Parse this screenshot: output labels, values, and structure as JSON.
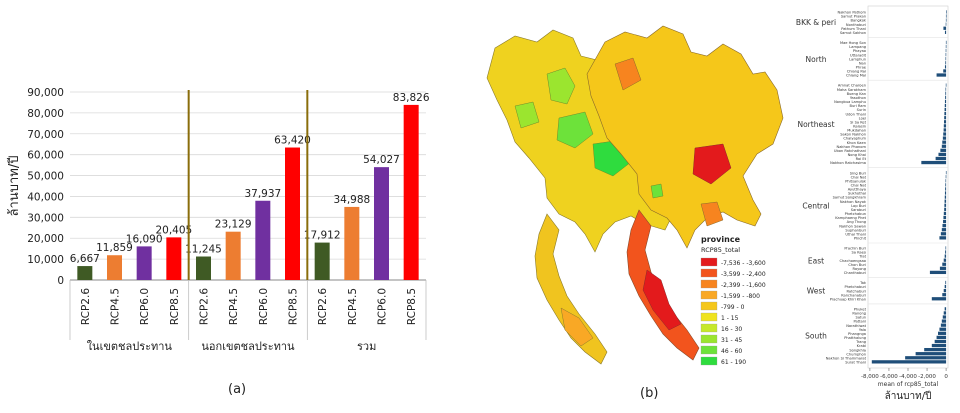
{
  "panel_a_label": "(a)",
  "panel_b_label": "(b)",
  "chart_data": [
    {
      "type": "bar",
      "ylabel": "ล้านบาท/ปี",
      "ylim": [
        0,
        90000
      ],
      "yticks": [
        "0",
        "10,000",
        "20,000",
        "30,000",
        "40,000",
        "50,000",
        "60,000",
        "70,000",
        "80,000",
        "90,000"
      ],
      "groups": [
        {
          "name": "ในเขตชลประทาน",
          "categories": [
            "RCP2.6",
            "RCP4.5",
            "RCP6.0",
            "RCP8.5"
          ],
          "values": [
            6667,
            11859,
            16090,
            20405
          ],
          "labels": [
            "6,667",
            "11,859",
            "16,090",
            "20,405"
          ]
        },
        {
          "name": "นอกเขตชลประทาน",
          "categories": [
            "RCP2.6",
            "RCP4.5",
            "RCP6.0",
            "RCP8.5"
          ],
          "values": [
            11245,
            23129,
            37937,
            63420
          ],
          "labels": [
            "11,245",
            "23,129",
            "37,937",
            "63,420"
          ]
        },
        {
          "name": "รวม",
          "categories": [
            "RCP2.6",
            "RCP4.5",
            "RCP6.0",
            "RCP8.5"
          ],
          "values": [
            17912,
            34988,
            54027,
            83826
          ],
          "labels": [
            "17,912",
            "34,988",
            "54,027",
            "83,826"
          ]
        }
      ],
      "colors": {
        "RCP2.6": "#3f5a24",
        "RCP4.5": "#ed7d31",
        "RCP6.0": "#7030a0",
        "RCP8.5": "#ff0000"
      },
      "grid": true
    },
    {
      "type": "bar",
      "orientation": "horizontal",
      "xlabel": "mean of rcp85_total",
      "xlabel2": "ล้านบาท/ปี",
      "xticks": [
        "-8,000",
        "-6,000",
        "-4,000",
        "-2,000",
        "0"
      ],
      "xlim": [
        -8200,
        200
      ],
      "bar_color": "#1f4e79",
      "regions": [
        {
          "name": "BKK & peri",
          "provinces": [
            "Nakhon Pathom",
            "Samut Prakan",
            "Bangkok",
            "Nonthaburi",
            "Pathum Thani",
            "Samut Sakhon"
          ],
          "values": [
            -10,
            -15,
            -20,
            -40,
            -280,
            -120
          ]
        },
        {
          "name": "North",
          "provinces": [
            "Mae Hong Son",
            "Lampang",
            "Phayao",
            "Uttaradit",
            "Lamphun",
            "Nan",
            "Phrae",
            "Chiang Rai",
            "Chiang Mai"
          ],
          "values": [
            -20,
            -30,
            -40,
            -50,
            -60,
            -80,
            -120,
            -300,
            -1000
          ]
        },
        {
          "name": "Northeast",
          "provinces": [
            "Amnat Charoen",
            "Maha Sarakham",
            "Bueng Kan",
            "Yasothon",
            "Nongbua Lamphu",
            "Buri Ram",
            "Surin",
            "Udon Thani",
            "Loei",
            "Si Sa Ket",
            "Kalasin",
            "Mukdahan",
            "Sakon Nakhon",
            "Chaiyaphum",
            "Khon Kaen",
            "Nakhon Phanom",
            "Ubon Ratchathani",
            "Nong Khai",
            "Roi Et",
            "Nakhon Ratchasima"
          ],
          "values": [
            -30,
            -60,
            -80,
            -100,
            -120,
            -140,
            -160,
            -180,
            -200,
            -220,
            -240,
            -260,
            -300,
            -340,
            -400,
            -450,
            -600,
            -800,
            -1100,
            -2600
          ]
        },
        {
          "name": "Central",
          "provinces": [
            "Sing Buri",
            "Chai Nat",
            "Phitsanulok",
            "Chai Nat",
            "Ayutthaya",
            "Sukhothai",
            "Samut Songkhram",
            "Nakhon Nayok",
            "Lop Buri",
            "Saraburi",
            "Phetchabun",
            "Kamphaeng Phet",
            "Ang Thong",
            "Nakhon Sawan",
            "Suphanburi",
            "Uthai Thani",
            "Phichit"
          ],
          "values": [
            -20,
            -40,
            -60,
            -80,
            -100,
            -120,
            -140,
            -160,
            -180,
            -200,
            -240,
            -280,
            -320,
            -380,
            -450,
            -550,
            -700
          ]
        },
        {
          "name": "East",
          "provinces": [
            "Prachin Buri",
            "Sa Kaeo",
            "Trat",
            "Chachoengsao",
            "Chon Buri",
            "Rayong",
            "Chanthaburi"
          ],
          "values": [
            -60,
            -100,
            -150,
            -250,
            -400,
            -650,
            -1700
          ]
        },
        {
          "name": "West",
          "provinces": [
            "Tak",
            "Phetchaburi",
            "Ratchaburi",
            "Kanchanaburi",
            "Prachuap Khiri Khan"
          ],
          "values": [
            -80,
            -150,
            -250,
            -400,
            -1500
          ]
        },
        {
          "name": "South",
          "provinces": [
            "Phuket",
            "Ranong",
            "Satun",
            "Pattani",
            "Narathiwat",
            "Yala",
            "Phangnga",
            "Phatthalung",
            "Trang",
            "Krabi",
            "Songkhla",
            "Chumphon",
            "Nakhon Si Thammarat",
            "Surat Thani"
          ],
          "values": [
            -150,
            -250,
            -350,
            -450,
            -550,
            -700,
            -850,
            -1000,
            -1200,
            -1500,
            -2300,
            -3200,
            -4300,
            -7800
          ]
        }
      ]
    }
  ],
  "map_legend": {
    "title": "province",
    "subtitle": "RCP85_total",
    "items": [
      {
        "label": "-7,536 - -3,600",
        "color": "#e31a1c"
      },
      {
        "label": "-3,599 - -2,400",
        "color": "#f2541d"
      },
      {
        "label": "-2,399 - -1,600",
        "color": "#f7841f"
      },
      {
        "label": "-1,599 - -800",
        "color": "#f9a825"
      },
      {
        "label": "-799 - 0",
        "color": "#f5c71a"
      },
      {
        "label": "1 - 15",
        "color": "#efe31f"
      },
      {
        "label": "16 - 30",
        "color": "#c6e82a"
      },
      {
        "label": "31 - 45",
        "color": "#9be52f"
      },
      {
        "label": "46 - 60",
        "color": "#6de23a"
      },
      {
        "label": "61 - 190",
        "color": "#2fdc3e"
      }
    ]
  }
}
